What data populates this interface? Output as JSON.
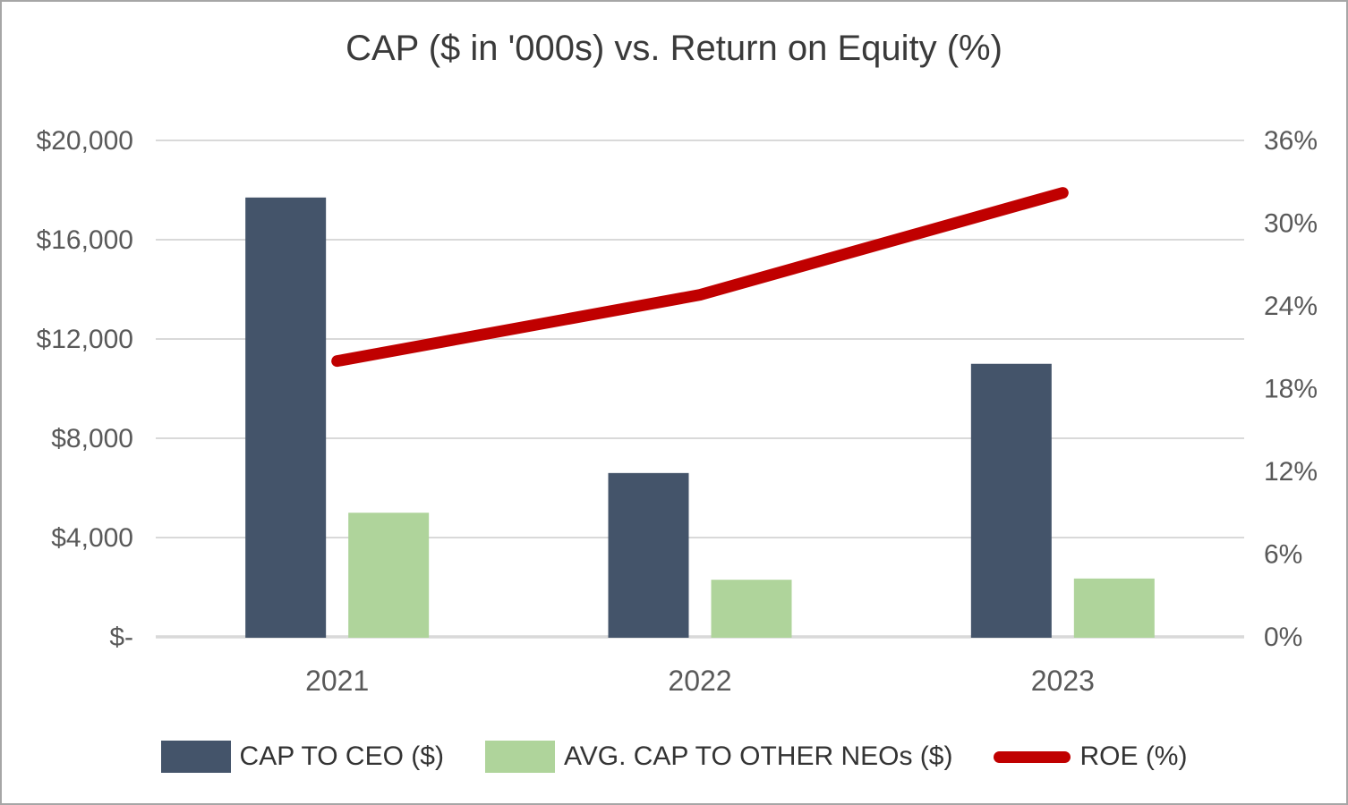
{
  "title": "CAP ($ in '000s) vs. Return on Equity (%)",
  "chart_data": {
    "type": "bar",
    "subtype": "grouped-bar-with-line-combo",
    "title": "CAP ($ in '000s) vs. Return on Equity (%)",
    "categories": [
      "2021",
      "2022",
      "2023"
    ],
    "series": [
      {
        "name": "CAP TO CEO ($)",
        "type": "bar",
        "axis": "left",
        "color": "#44546A",
        "values": [
          17700,
          6600,
          11000
        ]
      },
      {
        "name": "AVG. CAP TO OTHER NEOs ($)",
        "type": "bar",
        "axis": "left",
        "color": "#AFD49B",
        "values": [
          5000,
          2300,
          2350
        ]
      },
      {
        "name": "ROE (%)",
        "type": "line",
        "axis": "right",
        "color": "#C00000",
        "values": [
          20,
          24.8,
          32.2
        ]
      }
    ],
    "left_axis": {
      "min": 0,
      "max": 20000,
      "ticks": [
        {
          "label": "$20,000",
          "value": 20000
        },
        {
          "label": "$16,000",
          "value": 16000
        },
        {
          "label": "$12,000",
          "value": 12000
        },
        {
          "label": "$8,000",
          "value": 8000
        },
        {
          "label": "$4,000",
          "value": 4000
        },
        {
          "label": "$-",
          "value": 0
        }
      ]
    },
    "right_axis": {
      "min": 0,
      "max": 36,
      "ticks": [
        {
          "label": "36%",
          "value": 36
        },
        {
          "label": "30%",
          "value": 30
        },
        {
          "label": "24%",
          "value": 24
        },
        {
          "label": "18%",
          "value": 18
        },
        {
          "label": "12%",
          "value": 12
        },
        {
          "label": "6%",
          "value": 6
        },
        {
          "label": "0%",
          "value": 0
        }
      ]
    },
    "grid": true,
    "legend_position": "bottom",
    "colors": {
      "gridline": "#D9D9D9",
      "axis_text": "#595959",
      "title_text": "#3a3a3a",
      "legend_text": "#333333"
    }
  }
}
